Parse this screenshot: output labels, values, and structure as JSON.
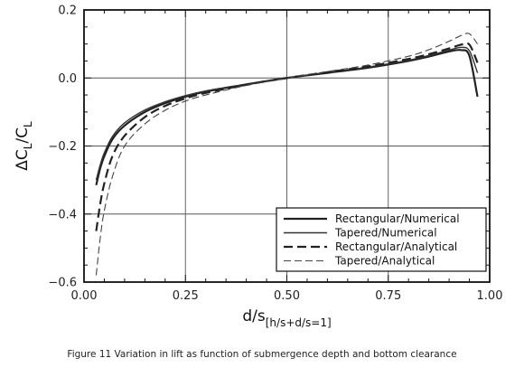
{
  "chart_data": {
    "type": "line",
    "title": "",
    "xlabel": "d/s",
    "xlabel_subscript": "[h/s+d/s=1]",
    "ylabel": "ΔC",
    "ylabel_sub1": "L",
    "ylabel_slash": "/C",
    "ylabel_sub2": "L",
    "xlim": [
      0.0,
      1.0
    ],
    "ylim": [
      -0.6,
      0.2
    ],
    "x_ticks": [
      0.0,
      0.25,
      0.5,
      0.75,
      1.0
    ],
    "x_tick_labels": [
      "0.00",
      "0.25",
      "0.50",
      "0.75",
      "1.00"
    ],
    "y_ticks": [
      -0.6,
      -0.4,
      -0.2,
      0.0,
      0.2
    ],
    "y_tick_labels": [
      "−0.6",
      "−0.4",
      "−0.2",
      "0.0",
      "0.2"
    ],
    "grid": true,
    "legend_position": "bottom-right",
    "series": [
      {
        "name": "Rectangular/Numerical",
        "style": "solid",
        "width": 2.2,
        "color": "#222222",
        "x": [
          0.03,
          0.04,
          0.05,
          0.07,
          0.1,
          0.15,
          0.2,
          0.25,
          0.3,
          0.4,
          0.5,
          0.6,
          0.7,
          0.8,
          0.85,
          0.9,
          0.93,
          0.95,
          0.97
        ],
        "y": [
          -0.315,
          -0.265,
          -0.23,
          -0.18,
          -0.14,
          -0.1,
          -0.074,
          -0.055,
          -0.04,
          -0.019,
          0.0,
          0.015,
          0.03,
          0.05,
          0.063,
          0.078,
          0.082,
          0.065,
          -0.055
        ]
      },
      {
        "name": "Tapered/Numerical",
        "style": "solid",
        "width": 1.4,
        "color": "#333333",
        "x": [
          0.03,
          0.04,
          0.05,
          0.07,
          0.1,
          0.15,
          0.2,
          0.25,
          0.3,
          0.4,
          0.5,
          0.6,
          0.7,
          0.8,
          0.85,
          0.9,
          0.93,
          0.95,
          0.97
        ],
        "y": [
          -0.3,
          -0.255,
          -0.22,
          -0.172,
          -0.132,
          -0.094,
          -0.07,
          -0.052,
          -0.038,
          -0.018,
          0.0,
          0.016,
          0.032,
          0.052,
          0.066,
          0.082,
          0.09,
          0.08,
          0.015
        ]
      },
      {
        "name": "Rectangular/Analytical",
        "style": "dashed",
        "width": 2.2,
        "color": "#222222",
        "x": [
          0.03,
          0.04,
          0.05,
          0.07,
          0.1,
          0.15,
          0.2,
          0.25,
          0.3,
          0.4,
          0.5,
          0.6,
          0.7,
          0.8,
          0.85,
          0.9,
          0.93,
          0.95,
          0.97
        ],
        "y": [
          -0.45,
          -0.37,
          -0.31,
          -0.23,
          -0.17,
          -0.115,
          -0.082,
          -0.06,
          -0.044,
          -0.02,
          0.0,
          0.017,
          0.034,
          0.056,
          0.07,
          0.087,
          0.098,
          0.098,
          0.045
        ]
      },
      {
        "name": "Tapered/Analytical",
        "style": "dashed",
        "width": 1.1,
        "color": "#444444",
        "x": [
          0.03,
          0.04,
          0.05,
          0.07,
          0.1,
          0.15,
          0.2,
          0.25,
          0.3,
          0.4,
          0.5,
          0.6,
          0.7,
          0.8,
          0.85,
          0.9,
          0.93,
          0.95,
          0.97
        ],
        "y": [
          -0.58,
          -0.47,
          -0.39,
          -0.29,
          -0.2,
          -0.135,
          -0.095,
          -0.068,
          -0.05,
          -0.022,
          0.0,
          0.019,
          0.038,
          0.064,
          0.083,
          0.108,
          0.125,
          0.13,
          0.1
        ]
      }
    ]
  },
  "caption": "Figure 11 Variation in lift as function of submergence depth and bottom clearance"
}
